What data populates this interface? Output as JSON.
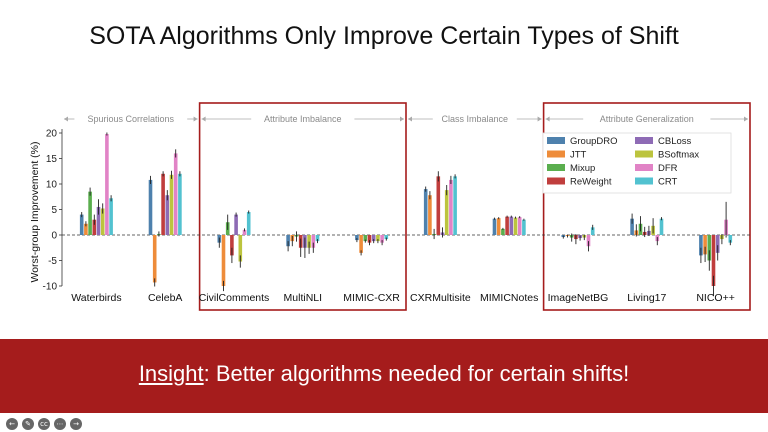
{
  "slide": {
    "title": "SOTA Algorithms Only Improve Certain Types of Shift",
    "insight_label": "Insight",
    "insight_rest": ": Better algorithms needed for certain shifts!"
  },
  "toolbar": {
    "icons": [
      "arrow-left-icon",
      "pen-icon",
      "cc-icon",
      "more-icon",
      "arrow-right-icon"
    ]
  },
  "colors": {
    "banner": "#a51c1c",
    "highlight_box": "#a51c1c"
  },
  "chart_data": {
    "type": "bar",
    "ylabel": "Worst-group Improvement (%)",
    "xlabel": "",
    "ylim": [
      -10,
      20
    ],
    "yticks": [
      -10,
      -5,
      0,
      5,
      10,
      15,
      20
    ],
    "categories": [
      "Waterbirds",
      "CelebA",
      "CivilComments",
      "MultiNLI",
      "MIMIC-CXR",
      "CXRMultisite",
      "MIMICNotes",
      "ImageNetBG",
      "Living17",
      "NICO++"
    ],
    "groups": [
      {
        "label": "Spurious Correlations",
        "start": 0,
        "end": 1,
        "highlighted": false
      },
      {
        "label": "Attribute Imbalance",
        "start": 2,
        "end": 4,
        "highlighted": true
      },
      {
        "label": "Class Imbalance",
        "start": 5,
        "end": 6,
        "highlighted": false
      },
      {
        "label": "Attribute Generalization",
        "start": 7,
        "end": 9,
        "highlighted": true
      }
    ],
    "legend_position": "top-right",
    "series": [
      {
        "name": "GroupDRO",
        "color": "#4e81ad",
        "values": [
          4,
          10.8,
          -1.5,
          -2.2,
          -1,
          9,
          3.2,
          -0.4,
          3.2,
          -4
        ],
        "errors": [
          0.5,
          0.8,
          1,
          1,
          0.4,
          0.5,
          0.2,
          0.3,
          1,
          1.5
        ]
      },
      {
        "name": "JTT",
        "color": "#ee8c3a",
        "values": [
          2.2,
          -9.3,
          -10,
          -1.2,
          -3.5,
          7.8,
          3.3,
          -0.2,
          0.9,
          -3.8
        ],
        "errors": [
          0.5,
          0.8,
          1,
          1,
          0.5,
          0.8,
          0.2,
          0.3,
          1.2,
          1.5
        ]
      },
      {
        "name": "Mixup",
        "color": "#5aae4e",
        "values": [
          8.5,
          0.2,
          2.5,
          -0.3,
          -1.2,
          0.2,
          1.2,
          -0.5,
          2.2,
          -5
        ],
        "errors": [
          0.8,
          0.5,
          1.5,
          1,
          0.3,
          1,
          0.2,
          0.8,
          1.5,
          2
        ]
      },
      {
        "name": "ReWeight",
        "color": "#c03e3d",
        "values": [
          3,
          12,
          -4,
          -2.5,
          -1.5,
          11.5,
          3.6,
          -0.8,
          0.6,
          -10
        ],
        "errors": [
          1,
          0.5,
          1.5,
          1.8,
          0.5,
          1,
          0.2,
          1,
          1,
          2
        ]
      },
      {
        "name": "CBLoss",
        "color": "#8e6bb5",
        "values": [
          5.5,
          7.8,
          4,
          -2.5,
          -1.2,
          0.5,
          3.6,
          -0.6,
          0.8,
          -3.5
        ],
        "errors": [
          1.5,
          1,
          0.4,
          2,
          0.4,
          1,
          0.2,
          0.5,
          1,
          1.5
        ]
      },
      {
        "name": "BSoftmax",
        "color": "#bcc43e",
        "values": [
          5.2,
          11.8,
          -5.2,
          -2.5,
          -1.2,
          8.8,
          3.4,
          -0.5,
          1.8,
          -0.8
        ],
        "errors": [
          1,
          0.8,
          1.2,
          1.2,
          0.4,
          1,
          0.2,
          0.5,
          1.5,
          1
        ]
      },
      {
        "name": "DFR",
        "color": "#e183c6",
        "values": [
          19.8,
          16,
          1,
          -2.5,
          -1.5,
          10.8,
          3.5,
          -2.2,
          -1.2,
          3
        ],
        "errors": [
          0.3,
          0.8,
          0.3,
          1,
          0.5,
          0.8,
          0.2,
          1,
          0.8,
          3.5
        ]
      },
      {
        "name": "CRT",
        "color": "#52c2d0",
        "values": [
          7.2,
          12,
          4.5,
          -1.2,
          -0.8,
          11.5,
          3,
          1.5,
          3.2,
          -1.5
        ],
        "errors": [
          0.6,
          0.5,
          0.3,
          0.4,
          0.3,
          0.4,
          0.2,
          0.5,
          0.3,
          0.5
        ]
      }
    ]
  }
}
